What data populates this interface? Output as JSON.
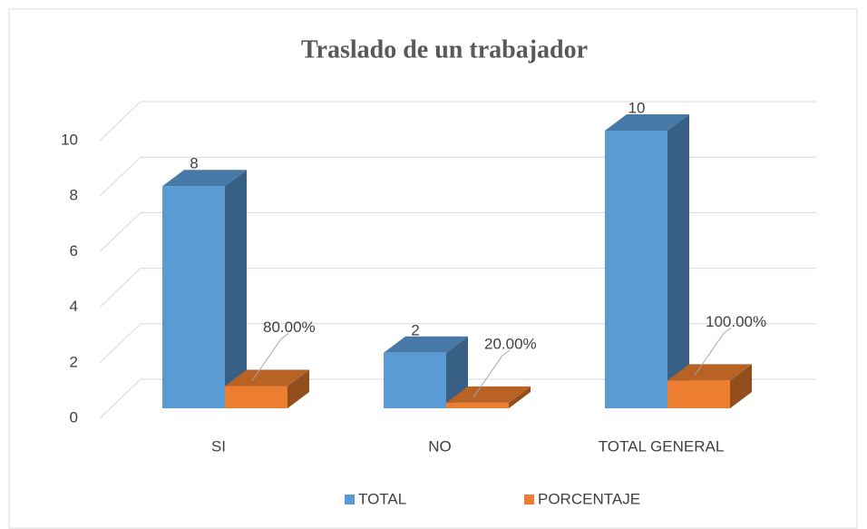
{
  "chart_data": {
    "type": "bar3d",
    "title": "Traslado de un trabajador",
    "categories": [
      "SI",
      "NO",
      "TOTAL GENERAL"
    ],
    "series": [
      {
        "name": "TOTAL",
        "color": "#5b9bd5",
        "values": [
          8,
          2,
          10
        ]
      },
      {
        "name": "PORCENTAJE",
        "color": "#ed7d31",
        "values": [
          0.8,
          0.2,
          1
        ],
        "value_labels": [
          "80.00%",
          "20.00%",
          "100.00%"
        ]
      }
    ],
    "ylim": [
      0,
      10
    ],
    "yticks": [
      0,
      2,
      4,
      6,
      8,
      10
    ],
    "grid": true,
    "legend": "bottom"
  }
}
